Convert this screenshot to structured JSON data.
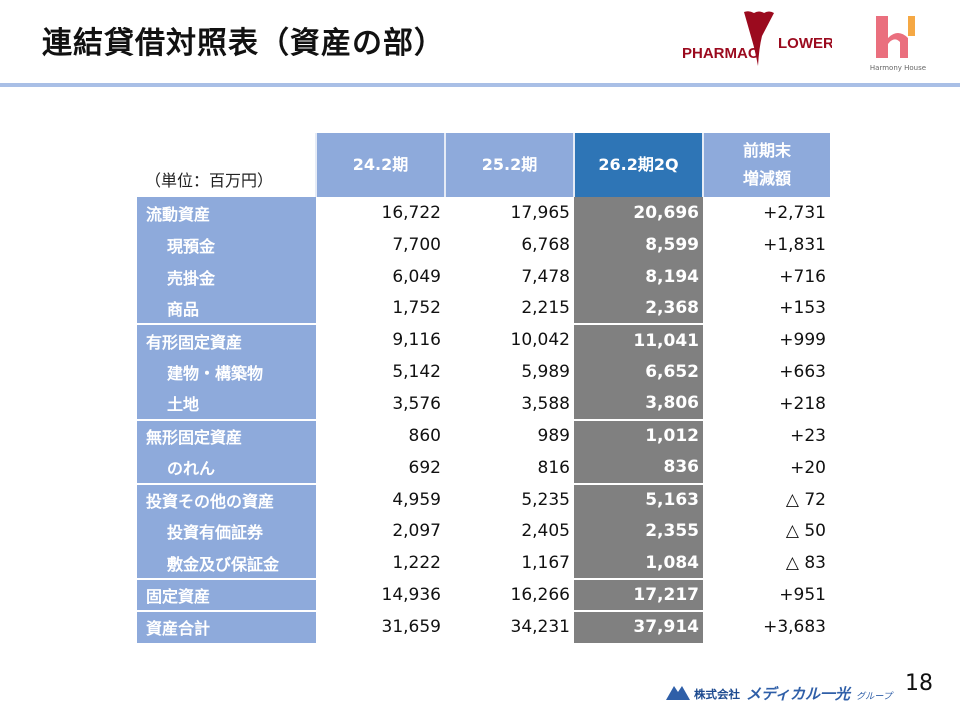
{
  "title": "連結貸借対照表（資産の部）",
  "logos": {
    "pharmacy": "PHARMAC FLOWER",
    "harmony": "Harmony House",
    "group": "株式会社メディカル一光グループ"
  },
  "unit": "（単位：百万円）",
  "headers": [
    "24.2期",
    "25.2期",
    "26.2期2Q",
    "前期末",
    "増減額"
  ],
  "colors": {
    "label_bg": "#8eaadb",
    "highlight_header": "#2e75b6",
    "highlight_col": "#808080",
    "rule": "#a9bfe6"
  },
  "rows": [
    {
      "label": "流動資産",
      "v1": "16,722",
      "v2": "17,965",
      "v3": "20,696",
      "diff": "+2,731"
    },
    {
      "label": "現預金",
      "v1": "7,700",
      "v2": "6,768",
      "v3": "8,599",
      "diff": "+1,831"
    },
    {
      "label": "売掛金",
      "v1": "6,049",
      "v2": "7,478",
      "v3": "8,194",
      "diff": "+716"
    },
    {
      "label": "商品",
      "v1": "1,752",
      "v2": "2,215",
      "v3": "2,368",
      "diff": "+153"
    },
    {
      "label": "有形固定資産",
      "v1": "9,116",
      "v2": "10,042",
      "v3": "11,041",
      "diff": "+999"
    },
    {
      "label": "建物・構築物",
      "v1": "5,142",
      "v2": "5,989",
      "v3": "6,652",
      "diff": "+663"
    },
    {
      "label": "土地",
      "v1": "3,576",
      "v2": "3,588",
      "v3": "3,806",
      "diff": "+218"
    },
    {
      "label": "無形固定資産",
      "v1": "860",
      "v2": "989",
      "v3": "1,012",
      "diff": "+23"
    },
    {
      "label": "のれん",
      "v1": "692",
      "v2": "816",
      "v3": "836",
      "diff": "+20"
    },
    {
      "label": "投資その他の資産",
      "v1": "4,959",
      "v2": "5,235",
      "v3": "5,163",
      "diff": "△ 72"
    },
    {
      "label": "投資有価証券",
      "v1": "2,097",
      "v2": "2,405",
      "v3": "2,355",
      "diff": "△ 50"
    },
    {
      "label": "敷金及び保証金",
      "v1": "1,222",
      "v2": "1,167",
      "v3": "1,084",
      "diff": "△ 83"
    },
    {
      "label": "固定資産",
      "v1": "14,936",
      "v2": "16,266",
      "v3": "17,217",
      "diff": "+951"
    },
    {
      "label": "資産合計",
      "v1": "31,659",
      "v2": "34,231",
      "v3": "37,914",
      "diff": "+3,683"
    }
  ],
  "page_number": "18"
}
